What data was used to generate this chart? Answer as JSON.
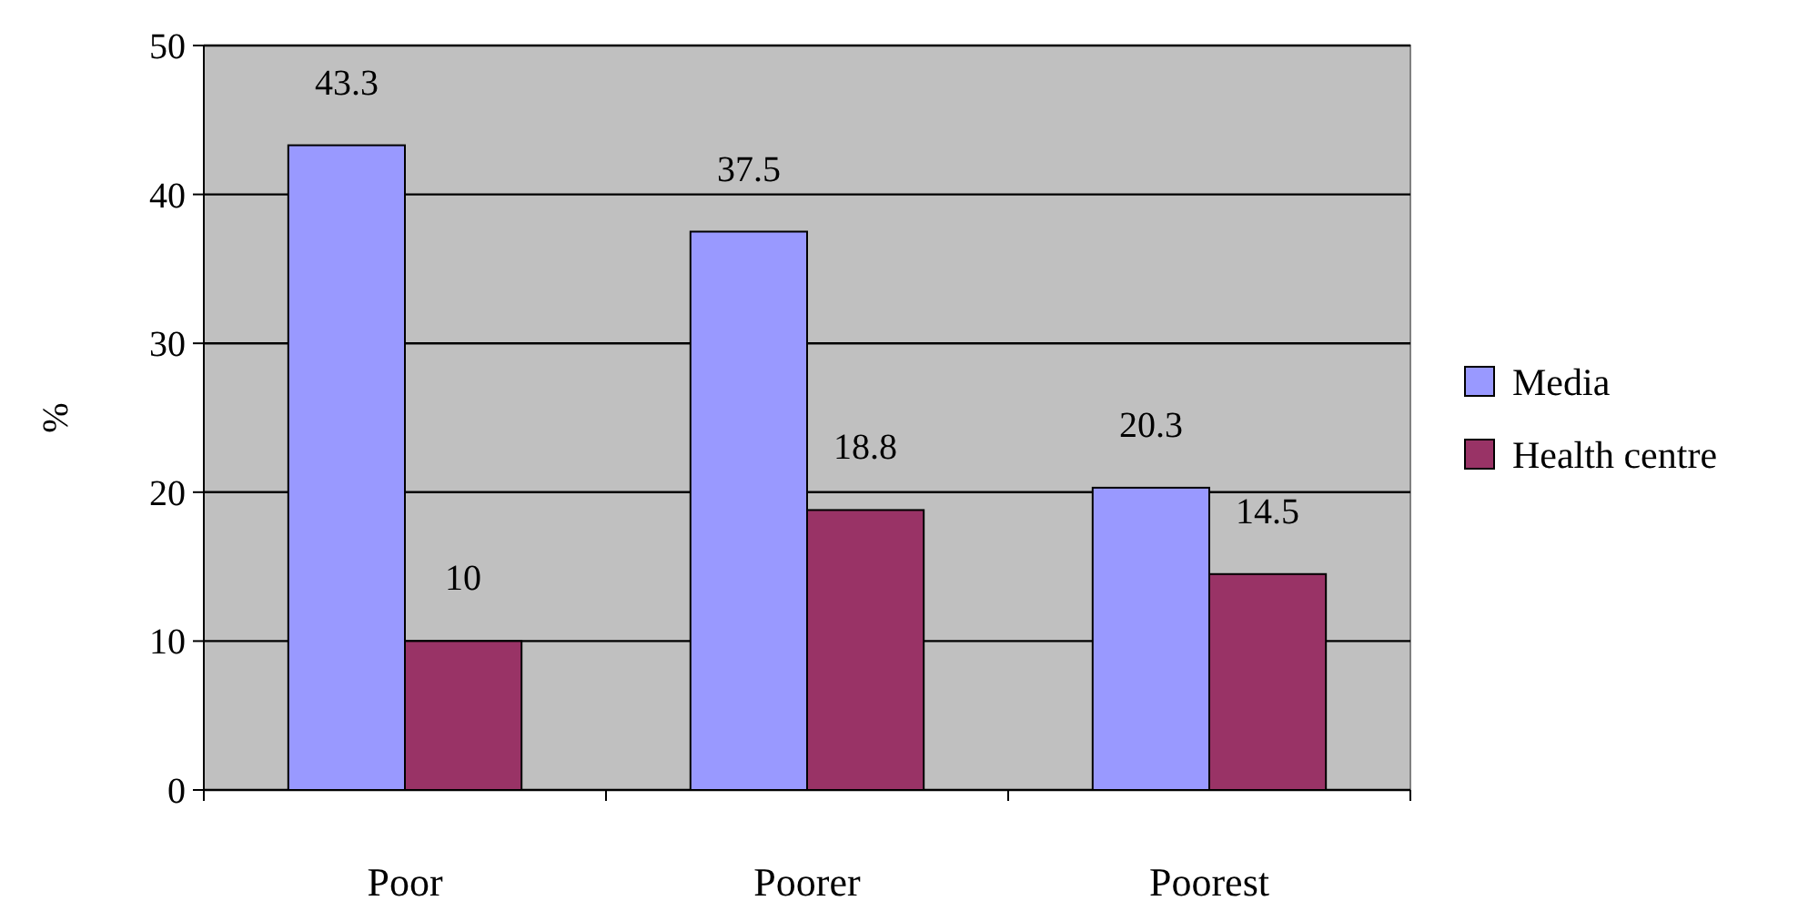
{
  "chart_data": {
    "type": "bar",
    "ylabel": "%",
    "categories": [
      "Poor",
      "Poorer",
      "Poorest"
    ],
    "series": [
      {
        "name": "Media",
        "color": "#9999ff",
        "values": [
          43.3,
          37.5,
          20.3
        ]
      },
      {
        "name": "Health centre",
        "color": "#993366",
        "values": [
          10,
          18.8,
          14.5
        ]
      }
    ],
    "ylim": [
      0,
      50
    ],
    "yticks": [
      0,
      10,
      20,
      30,
      40,
      50
    ],
    "grid": "y",
    "legend": "right",
    "data_labels": true
  }
}
